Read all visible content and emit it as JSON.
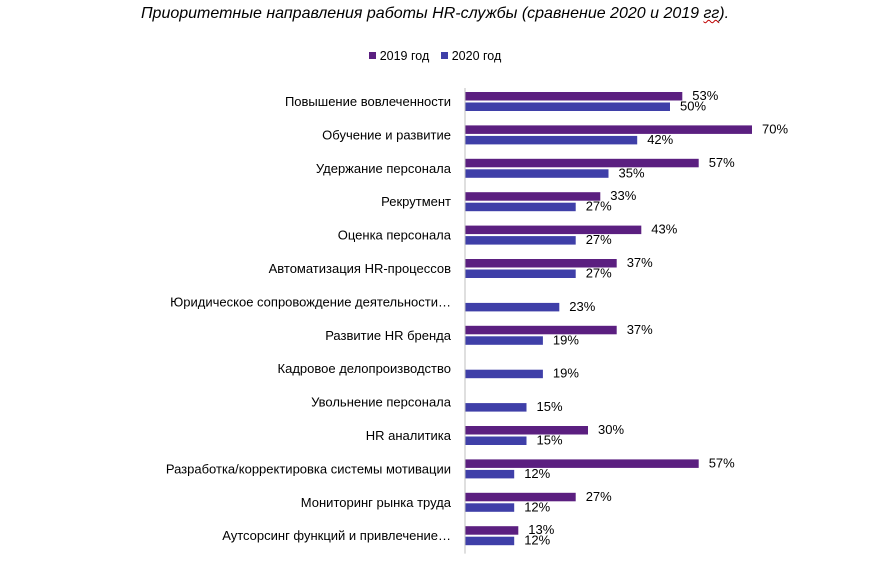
{
  "title_main": "Приоритетные направления работы HR-службы (сравнение 2020 и 2019 ",
  "title_tail": "гг",
  "title_end": ").",
  "colors": {
    "s2019": "#5b1f80",
    "s2020": "#3f3fa8"
  },
  "chart_data": {
    "type": "bar",
    "orientation": "horizontal",
    "title": "Приоритетные направления работы HR-службы (сравнение 2020 и 2019 гг).",
    "legend_position": "top",
    "grid": false,
    "categories": [
      "Повышение  вовлеченности",
      "Обучение и развитие",
      "Удержание персонала",
      "Рекрутмент",
      "Оценка персонала",
      "Автоматизация HR-процессов",
      "Юридическое сопровождение деятельности…",
      "Развитие HR бренда",
      "Кадровое делопроизводство",
      "Увольнение персонала",
      "HR аналитика",
      "Разработка/корректировка системы мотивации",
      "Мониторинг  рынка труда",
      "Аутсорсинг функций и привлечение…"
    ],
    "series": [
      {
        "name": "2019 год",
        "values": [
          53,
          70,
          57,
          33,
          43,
          37,
          null,
          37,
          null,
          null,
          30,
          57,
          27,
          13
        ]
      },
      {
        "name": "2020 год",
        "values": [
          50,
          42,
          35,
          27,
          27,
          27,
          23,
          19,
          19,
          15,
          15,
          12,
          12,
          12
        ]
      }
    ],
    "value_suffix": "%",
    "xlim": [
      0,
      70
    ]
  }
}
